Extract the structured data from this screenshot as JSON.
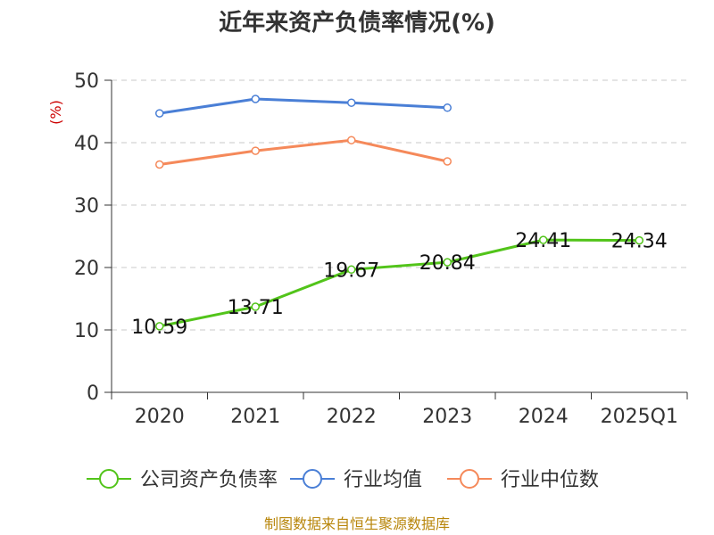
{
  "chart_data": {
    "type": "line",
    "title": "近年来资产负债率情况(%)",
    "ylabel": "(%)",
    "categories": [
      "2020",
      "2021",
      "2022",
      "2023",
      "2024",
      "2025Q1"
    ],
    "ylim": [
      0,
      50
    ],
    "yticks": [
      0,
      10,
      20,
      30,
      40,
      50
    ],
    "grid": true,
    "legend_position": "bottom",
    "series": [
      {
        "name": "公司资产负债率",
        "color": "#52c41a",
        "values": [
          10.59,
          13.71,
          19.67,
          20.84,
          24.41,
          24.34
        ],
        "labels": [
          "10.59",
          "13.71",
          "19.67",
          "20.84",
          "24.41",
          "24.34"
        ]
      },
      {
        "name": "行业均值",
        "color": "#4a7fd6",
        "values": [
          44.7,
          47.0,
          46.4,
          45.6,
          null,
          null
        ]
      },
      {
        "name": "行业中位数",
        "color": "#f5895a",
        "values": [
          36.5,
          38.7,
          40.4,
          37.0,
          null,
          null
        ]
      }
    ]
  },
  "source": "制图数据来自恒生聚源数据库"
}
